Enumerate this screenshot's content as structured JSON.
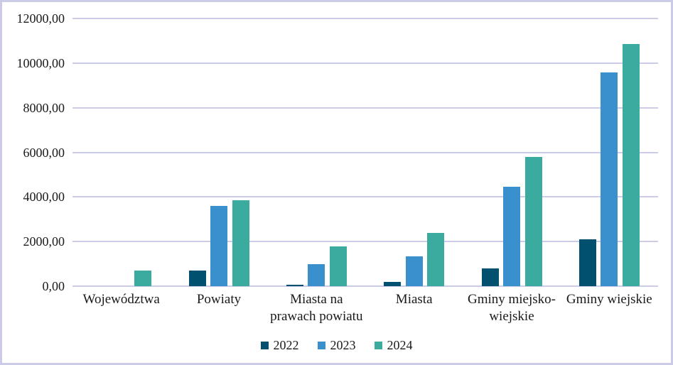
{
  "chart_data": {
    "type": "bar",
    "categories": [
      "Województwa",
      "Powiaty",
      "Miasta na\nprawach powiatu",
      "Miasta",
      "Gminy miejsko-\nwiejskie",
      "Gminy wiejskie"
    ],
    "series": [
      {
        "name": "2022",
        "color": "#02506F",
        "values": [
          0,
          700,
          70,
          200,
          780,
          2100
        ]
      },
      {
        "name": "2023",
        "color": "#3A90CC",
        "values": [
          0,
          3600,
          980,
          1330,
          4470,
          9570
        ]
      },
      {
        "name": "2024",
        "color": "#3BAB9F",
        "values": [
          700,
          3850,
          1780,
          2390,
          5800,
          10850
        ]
      }
    ],
    "title": "",
    "xlabel": "",
    "ylabel": "",
    "ylim": [
      0,
      12000
    ],
    "ytick_step": 2000,
    "ytick_labels": [
      "0,00",
      "2000,00",
      "4000,00",
      "6000,00",
      "8000,00",
      "10000,00",
      "12000,00"
    ],
    "grid": true,
    "legend_position": "bottom",
    "grid_color": "#CCCCE6",
    "border_color": "#CBCBE8",
    "text_color": "#1A1A1A"
  }
}
